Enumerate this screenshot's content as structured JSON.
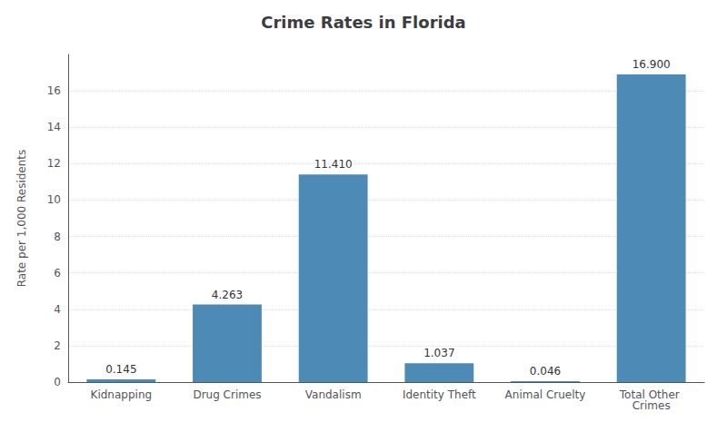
{
  "chart_data": {
    "type": "bar",
    "title": "Crime Rates in Florida",
    "categories": [
      "Kidnapping",
      "Drug Crimes",
      "Vandalism",
      "Identity Theft",
      "Animal Cruelty",
      "Total Other Crimes"
    ],
    "values": [
      0.145,
      4.263,
      11.41,
      1.037,
      0.046,
      16.9
    ],
    "value_labels": [
      "0.145",
      "4.263",
      "11.410",
      "1.037",
      "0.046",
      "16.900"
    ],
    "data_labels": true,
    "color": "#4d8ab5",
    "ylabel": "Rate per 1,000 Residents",
    "ylim": [
      0,
      18
    ],
    "yticks": [
      0,
      2,
      4,
      6,
      8,
      10,
      12,
      14,
      16
    ],
    "grid": true
  }
}
